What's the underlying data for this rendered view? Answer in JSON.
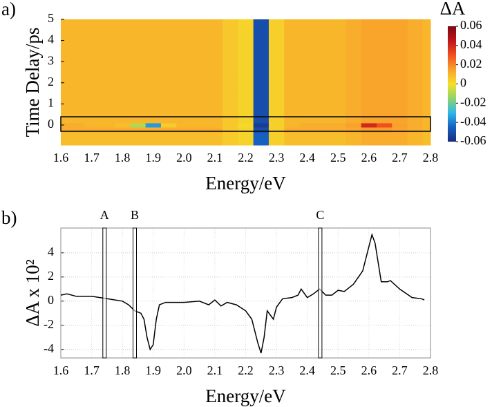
{
  "chart_data": [
    {
      "type": "heatmap",
      "panel_label": "a)",
      "x_label": "Energy/eV",
      "y_label": "Time Delay/ps",
      "colorbar_label": "ΔA",
      "x": [
        1.6,
        1.65,
        1.7,
        1.75,
        1.8,
        1.85,
        1.9,
        1.95,
        2.0,
        2.05,
        2.1,
        2.15,
        2.2,
        2.25,
        2.3,
        2.35,
        2.4,
        2.45,
        2.5,
        2.55,
        2.6,
        2.65,
        2.7,
        2.75,
        2.8
      ],
      "y": [
        -0.8,
        -0.5,
        -0.2,
        0,
        0.2,
        0.5,
        1,
        2,
        3,
        4,
        5
      ],
      "z": [
        [
          0.008,
          0.008,
          0.008,
          0.008,
          0.008,
          0.008,
          0.008,
          0.008,
          0.008,
          0.008,
          0.008,
          0.005,
          0.003,
          -0.045,
          0.004,
          0.008,
          0.008,
          0.008,
          0.008,
          0.01,
          0.012,
          0.012,
          0.012,
          0.01,
          0.008
        ],
        [
          0.008,
          0.008,
          0.008,
          0.008,
          0.008,
          0.008,
          0.008,
          0.008,
          0.008,
          0.008,
          0.008,
          0.005,
          0.003,
          -0.045,
          0.004,
          0.008,
          0.008,
          0.008,
          0.008,
          0.01,
          0.012,
          0.012,
          0.012,
          0.01,
          0.008
        ],
        [
          0.012,
          0.012,
          0.012,
          0.012,
          0.012,
          0.012,
          0.012,
          0.012,
          0.012,
          0.012,
          0.012,
          0.006,
          0.003,
          -0.05,
          0.004,
          0.012,
          0.012,
          0.012,
          0.012,
          0.013,
          0.016,
          0.016,
          0.014,
          0.012,
          0.01
        ],
        [
          0.012,
          0.012,
          0.01,
          0.01,
          0.008,
          -0.01,
          -0.035,
          0.005,
          0.01,
          0.01,
          0.01,
          0.006,
          0.002,
          -0.055,
          0.004,
          0.01,
          0.012,
          0.012,
          0.012,
          0.015,
          0.04,
          0.03,
          0.015,
          0.012,
          0.01
        ],
        [
          0.01,
          0.01,
          0.01,
          0.01,
          0.01,
          0.01,
          0.01,
          0.01,
          0.01,
          0.01,
          0.01,
          0.006,
          0.003,
          -0.05,
          0.004,
          0.01,
          0.01,
          0.01,
          0.01,
          0.012,
          0.014,
          0.014,
          0.014,
          0.012,
          0.01
        ],
        [
          0.01,
          0.01,
          0.01,
          0.01,
          0.01,
          0.01,
          0.01,
          0.01,
          0.01,
          0.01,
          0.01,
          0.006,
          0.003,
          -0.05,
          0.004,
          0.01,
          0.01,
          0.01,
          0.01,
          0.012,
          0.014,
          0.014,
          0.014,
          0.012,
          0.01
        ],
        [
          0.01,
          0.01,
          0.01,
          0.01,
          0.01,
          0.01,
          0.01,
          0.01,
          0.01,
          0.01,
          0.01,
          0.006,
          0.003,
          -0.05,
          0.004,
          0.01,
          0.01,
          0.01,
          0.01,
          0.012,
          0.014,
          0.014,
          0.014,
          0.012,
          0.01
        ],
        [
          0.01,
          0.01,
          0.01,
          0.01,
          0.01,
          0.01,
          0.01,
          0.01,
          0.01,
          0.01,
          0.01,
          0.006,
          0.003,
          -0.05,
          0.004,
          0.01,
          0.01,
          0.01,
          0.01,
          0.012,
          0.014,
          0.014,
          0.014,
          0.012,
          0.01
        ],
        [
          0.01,
          0.01,
          0.01,
          0.01,
          0.01,
          0.01,
          0.01,
          0.01,
          0.01,
          0.01,
          0.01,
          0.006,
          0.003,
          -0.05,
          0.004,
          0.01,
          0.01,
          0.01,
          0.01,
          0.012,
          0.014,
          0.014,
          0.014,
          0.012,
          0.01
        ],
        [
          0.01,
          0.01,
          0.01,
          0.01,
          0.01,
          0.01,
          0.01,
          0.01,
          0.01,
          0.01,
          0.01,
          0.006,
          0.003,
          -0.05,
          0.004,
          0.01,
          0.01,
          0.01,
          0.01,
          0.012,
          0.014,
          0.014,
          0.014,
          0.012,
          0.01
        ],
        [
          0.01,
          0.01,
          0.01,
          0.01,
          0.01,
          0.01,
          0.01,
          0.01,
          0.01,
          0.01,
          0.01,
          0.006,
          0.003,
          -0.05,
          0.004,
          0.01,
          0.01,
          0.01,
          0.01,
          0.012,
          0.014,
          0.014,
          0.014,
          0.012,
          0.01
        ]
      ],
      "xlim": [
        1.6,
        2.8
      ],
      "ylim": [
        -0.95,
        5
      ],
      "xticks": [
        1.6,
        1.7,
        1.8,
        1.9,
        {
          "value": 2,
          "label": "2.0"
        },
        2.1,
        2.2,
        2.3,
        2.4,
        2.5,
        2.6,
        2.7,
        2.8
      ],
      "yticks": [
        0,
        1,
        2,
        3,
        4,
        5
      ],
      "zlim": [
        -0.06,
        0.06
      ],
      "zticks": [
        -0.06,
        -0.04,
        -0.02,
        0,
        0.02,
        0.04,
        0.06
      ],
      "colorscale": [
        "#1b2a80",
        "#1560c0",
        "#2fb8e8",
        "#8fd46a",
        "#f5e02a",
        "#f9a12c",
        "#f0501e",
        "#c0141c",
        "#7a0a10"
      ]
    },
    {
      "type": "line",
      "panel_label": "b)",
      "x_label": "Energy/eV",
      "y_label": "ΔA x 10²",
      "color": "#000000",
      "grid": true,
      "x": [
        1.6,
        1.62,
        1.65,
        1.7,
        1.75,
        1.8,
        1.82,
        1.84,
        1.86,
        1.87,
        1.88,
        1.89,
        1.9,
        1.91,
        1.92,
        1.94,
        2.0,
        2.05,
        2.08,
        2.1,
        2.12,
        2.14,
        2.17,
        2.2,
        2.22,
        2.24,
        2.25,
        2.26,
        2.27,
        2.29,
        2.3,
        2.32,
        2.35,
        2.37,
        2.38,
        2.4,
        2.42,
        2.44,
        2.46,
        2.48,
        2.5,
        2.52,
        2.55,
        2.58,
        2.6,
        2.61,
        2.62,
        2.64,
        2.66,
        2.67,
        2.7,
        2.74,
        2.77,
        2.78
      ],
      "values": [
        0.5,
        0.6,
        0.4,
        0.4,
        0.2,
        0.0,
        -0.3,
        -0.8,
        -1.0,
        -1.5,
        -3.0,
        -4.0,
        -3.6,
        -1.5,
        -0.3,
        -0.1,
        -0.1,
        0.0,
        -0.3,
        0.1,
        -0.4,
        -0.1,
        -0.3,
        -0.8,
        -1.5,
        -3.5,
        -4.3,
        -3.0,
        -0.8,
        -1.5,
        -0.5,
        0.2,
        0.3,
        0.5,
        1.0,
        0.3,
        0.6,
        1.0,
        0.5,
        0.5,
        0.9,
        0.8,
        1.4,
        2.5,
        4.5,
        5.5,
        4.8,
        1.6,
        1.6,
        1.7,
        1.0,
        0.3,
        0.2,
        0.1
      ],
      "markers": [
        {
          "label": "A",
          "x": 1.742
        },
        {
          "label": "B",
          "x": 1.84
        },
        {
          "label": "C",
          "x": 2.442
        }
      ],
      "xlim": [
        1.6,
        2.8
      ],
      "ylim": [
        -4.7,
        6.05
      ],
      "xticks": [
        1.6,
        1.7,
        1.8,
        1.9,
        {
          "value": 2,
          "label": "2.0"
        },
        2.1,
        2.2,
        2.3,
        2.4,
        2.5,
        2.6,
        2.7,
        2.8
      ],
      "yticks": [
        -4,
        -2,
        0,
        2,
        4
      ]
    }
  ]
}
